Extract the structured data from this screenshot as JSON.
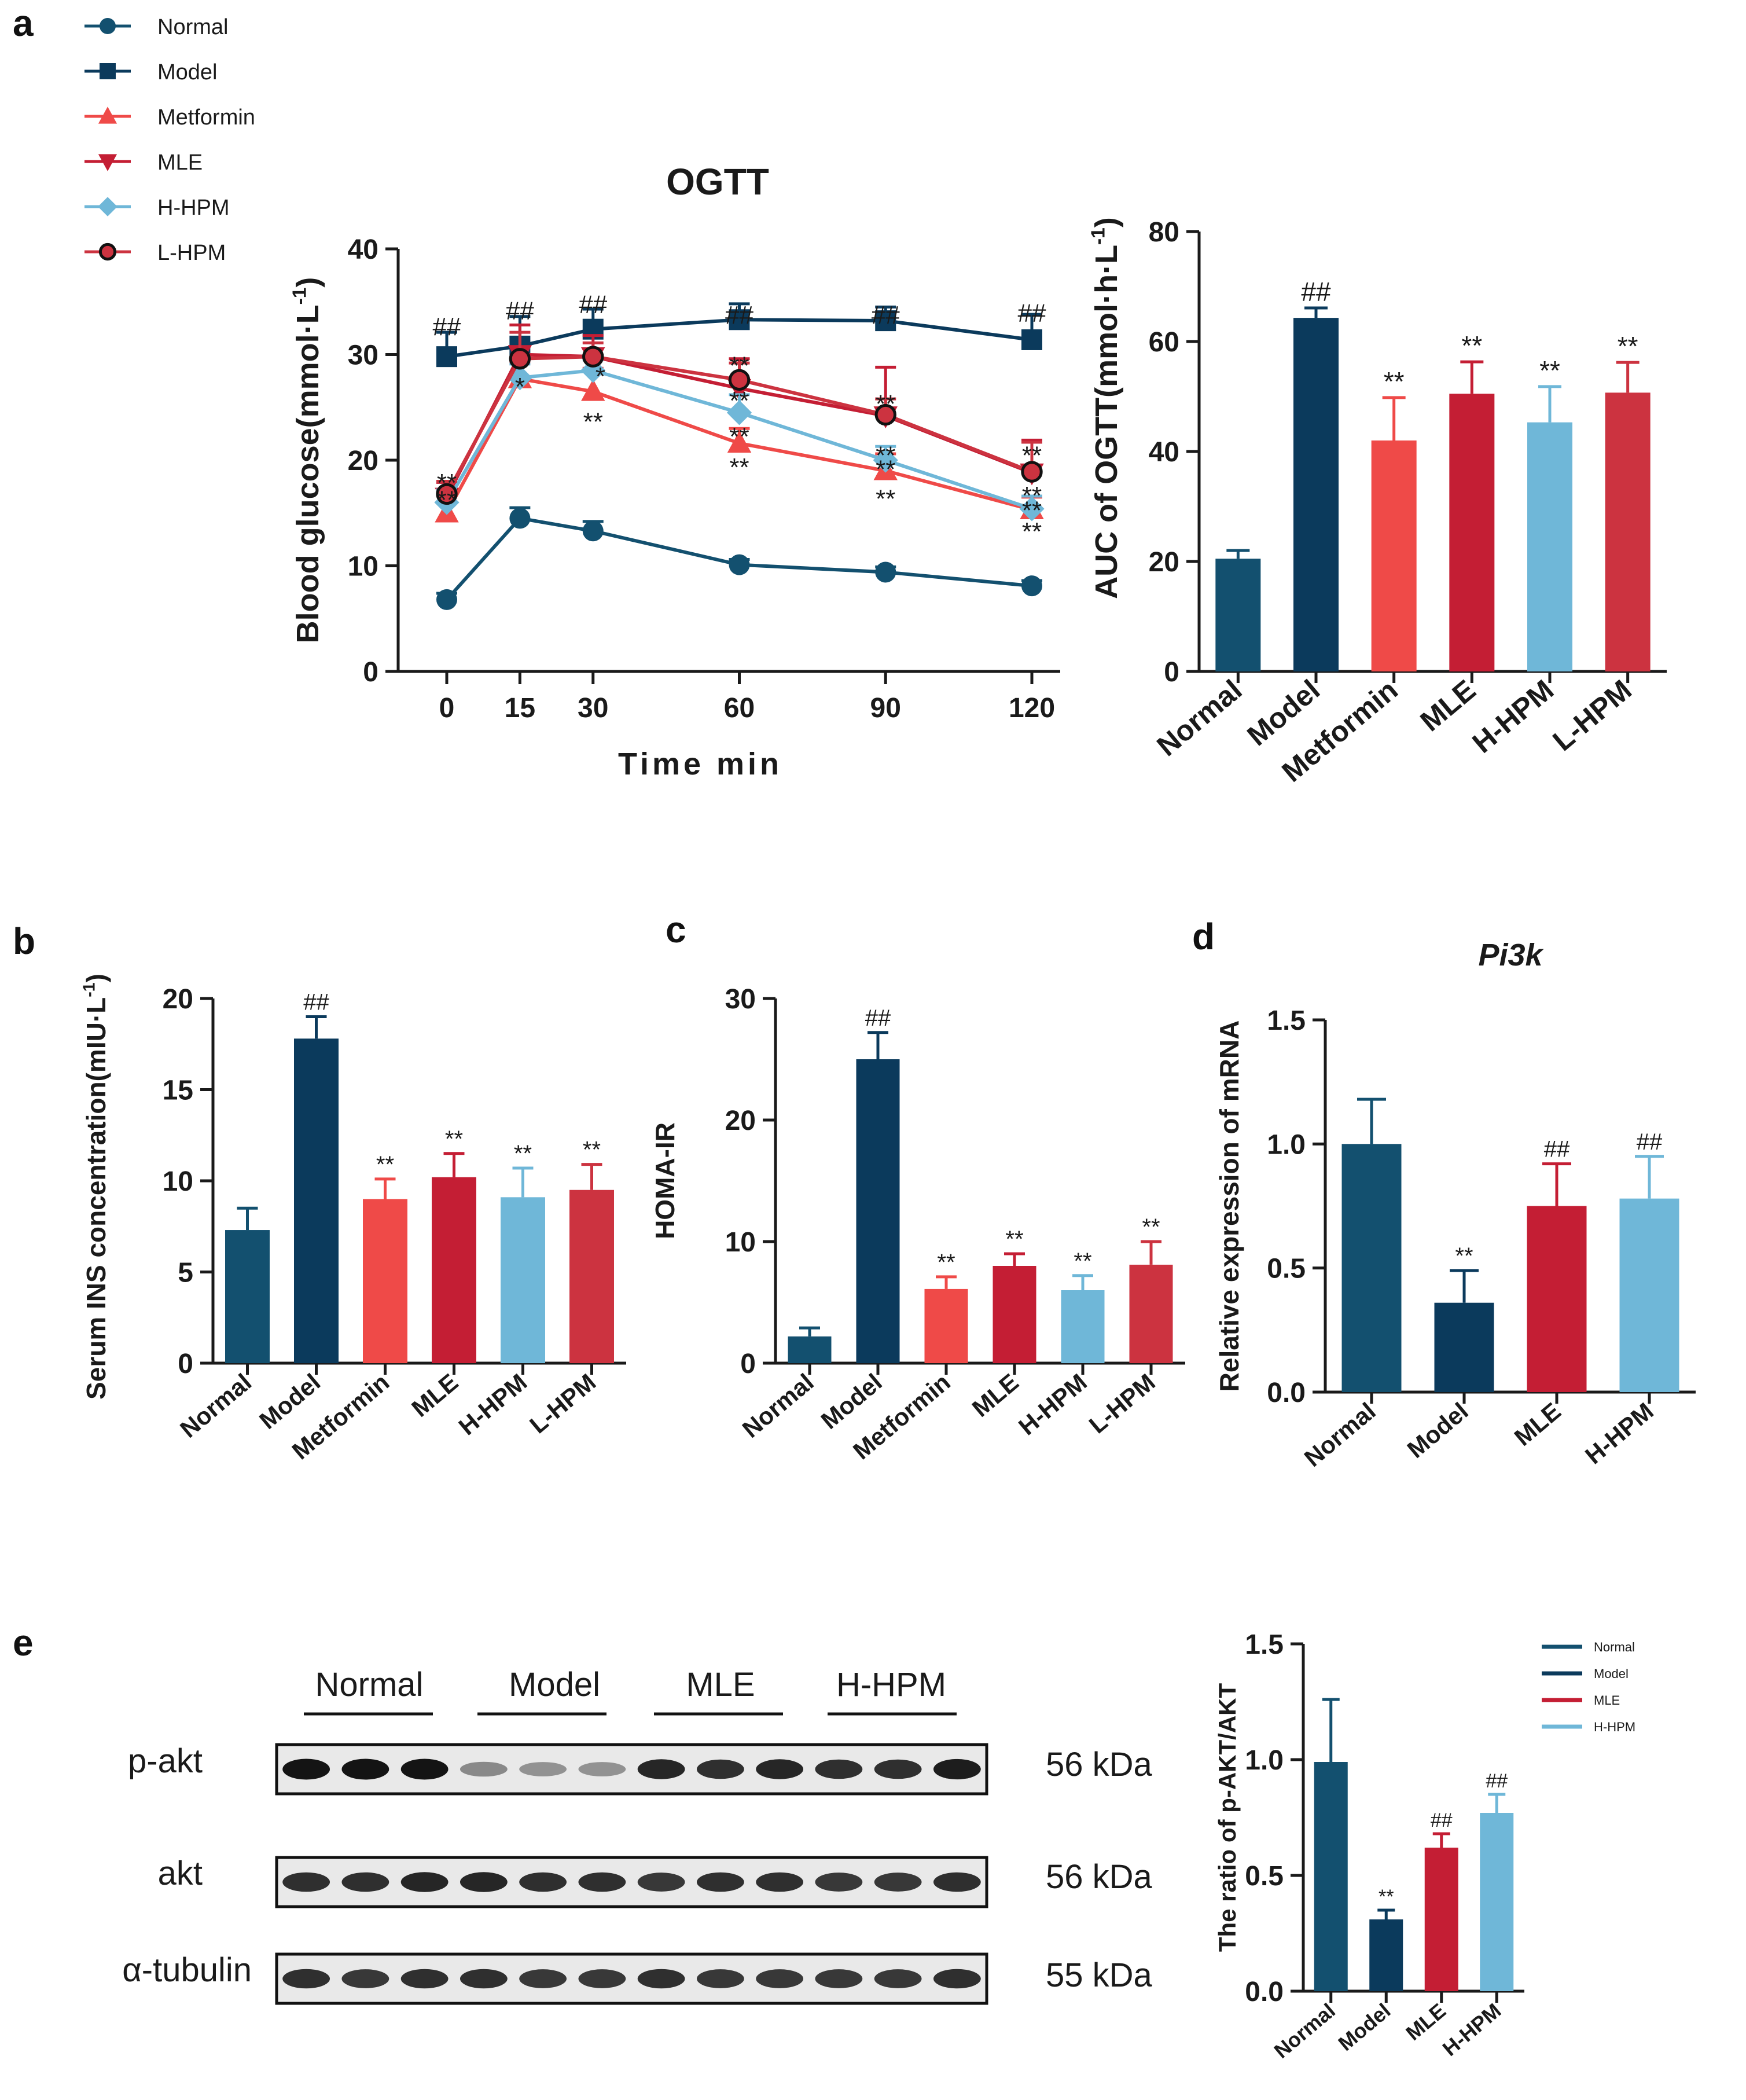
{
  "panel_labels": {
    "a": "a",
    "b": "b",
    "c": "c",
    "d": "d",
    "e": "e"
  },
  "colors": {
    "Normal": "#13506f",
    "Model": "#0b3a5c",
    "Metformin": "#ef4a48",
    "MLE": "#c41e34",
    "H-HPM": "#6fb7d8",
    "L-HPM": "#cc3340"
  },
  "legend_a": [
    {
      "name": "Normal",
      "marker": "circle"
    },
    {
      "name": "Model",
      "marker": "square"
    },
    {
      "name": "Metformin",
      "marker": "triangle-up"
    },
    {
      "name": "MLE",
      "marker": "triangle-down"
    },
    {
      "name": "H-HPM",
      "marker": "diamond"
    },
    {
      "name": "L-HPM",
      "marker": "circle-outlined"
    }
  ],
  "chart_data": [
    {
      "id": "ogtt",
      "type": "line",
      "title": "OGTT",
      "xlabel": "Time   min",
      "ylabel": "Blood glucose(mmol·L",
      "ylabel_sup": "-1",
      "ylabel_end": ")",
      "x": [
        0,
        15,
        30,
        60,
        90,
        120
      ],
      "xticks": [
        "0",
        "15",
        "30",
        "60",
        "90",
        "120"
      ],
      "ylim": [
        0,
        40
      ],
      "yticks": [
        "0",
        "10",
        "20",
        "30",
        "40"
      ],
      "series": [
        {
          "name": "Normal",
          "values": [
            6.8,
            14.5,
            13.3,
            10.1,
            9.4,
            8.1
          ],
          "err": [
            0.6,
            1.0,
            0.9,
            0.5,
            0.5,
            0.5
          ]
        },
        {
          "name": "Model",
          "values": [
            29.8,
            30.8,
            32.4,
            33.3,
            33.2,
            31.4
          ],
          "err": [
            2.3,
            2.8,
            1.9,
            1.5,
            1.3,
            2.4
          ]
        },
        {
          "name": "Metformin",
          "values": [
            15.0,
            27.7,
            26.5,
            21.6,
            19.0,
            15.3
          ],
          "err": [
            1.0,
            1.6,
            2.2,
            1.4,
            1.6,
            1.2
          ]
        },
        {
          "name": "MLE",
          "values": [
            16.5,
            30.0,
            29.8,
            26.8,
            24.2,
            18.8
          ],
          "err": [
            1.4,
            2.8,
            2.0,
            2.8,
            4.6,
            3.1
          ]
        },
        {
          "name": "H-HPM",
          "values": [
            16.0,
            27.8,
            28.5,
            24.5,
            20.0,
            15.4
          ],
          "err": [
            1.2,
            1.3,
            1.0,
            1.7,
            1.3,
            1.2
          ]
        },
        {
          "name": "L-HPM",
          "values": [
            16.8,
            29.6,
            29.8,
            27.6,
            24.3,
            18.9
          ],
          "err": [
            1.2,
            2.5,
            1.3,
            1.6,
            1.5,
            2.8
          ]
        }
      ],
      "sig_labels": [
        {
          "text": "##",
          "x": 0,
          "y": 32.6
        },
        {
          "text": "##",
          "x": 15,
          "y": 34.1
        },
        {
          "text": "##",
          "x": 30,
          "y": 34.7
        },
        {
          "text": "##",
          "x": 60,
          "y": 33.7
        },
        {
          "text": "##",
          "x": 90,
          "y": 33.7
        },
        {
          "text": "##",
          "x": 120,
          "y": 33.9
        },
        {
          "text": "**",
          "x": 0,
          "y": 17.8
        },
        {
          "text": "**",
          "x": 0,
          "y": 16.2
        },
        {
          "text": "*",
          "x": 15,
          "y": 26.9
        },
        {
          "text": "*",
          "x": 31.5,
          "y": 27.9
        },
        {
          "text": "**",
          "x": 30,
          "y": 23.6
        },
        {
          "text": "**",
          "x": 60,
          "y": 28.9
        },
        {
          "text": "**",
          "x": 60,
          "y": 25.6
        },
        {
          "text": "**",
          "x": 60,
          "y": 22.2
        },
        {
          "text": "**",
          "x": 60,
          "y": 19.3
        },
        {
          "text": "**",
          "x": 90,
          "y": 25.3
        },
        {
          "text": "**",
          "x": 90,
          "y": 20.4
        },
        {
          "text": "**",
          "x": 90,
          "y": 19.1
        },
        {
          "text": "**",
          "x": 90,
          "y": 16.3
        },
        {
          "text": "**",
          "x": 120,
          "y": 20.4
        },
        {
          "text": "**",
          "x": 120,
          "y": 16.6
        },
        {
          "text": "**",
          "x": 120,
          "y": 15.2
        },
        {
          "text": "**",
          "x": 120,
          "y": 13.2
        }
      ]
    },
    {
      "id": "auc",
      "type": "bar",
      "title": "",
      "ylabel": "AUC of OGTT(mmol·h·L",
      "ylabel_sup": "-1",
      "ylabel_end": ")",
      "categories": [
        "Normal",
        "Model",
        "Metformin",
        "MLE",
        "H-HPM",
        "L-HPM"
      ],
      "values": [
        20.5,
        64.3,
        42.0,
        50.5,
        45.3,
        50.7
      ],
      "err": [
        1.5,
        1.8,
        7.8,
        5.8,
        6.5,
        5.5
      ],
      "sig": [
        "",
        "##",
        "**",
        "**",
        "**",
        "**"
      ],
      "ylim": [
        0,
        80
      ],
      "yticks": [
        "0",
        "20",
        "40",
        "60",
        "80"
      ]
    },
    {
      "id": "ins",
      "type": "bar",
      "ylabel": "Serum INS concentration(mIU·L",
      "ylabel_sup": "-1",
      "ylabel_end": ")",
      "categories": [
        "Normal",
        "Model",
        "Metformin",
        "MLE",
        "H-HPM",
        "L-HPM"
      ],
      "values": [
        7.3,
        17.8,
        9.0,
        10.2,
        9.1,
        9.5
      ],
      "err": [
        1.2,
        1.2,
        1.1,
        1.3,
        1.6,
        1.4
      ],
      "sig": [
        "",
        "##",
        "**",
        "**",
        "**",
        "**"
      ],
      "ylim": [
        0,
        20
      ],
      "yticks": [
        "0",
        "5",
        "10",
        "15",
        "20"
      ]
    },
    {
      "id": "homa",
      "type": "bar",
      "ylabel": "HOMA-IR",
      "categories": [
        "Normal",
        "Model",
        "Metformin",
        "MLE",
        "H-HPM",
        "L-HPM"
      ],
      "values": [
        2.2,
        25.0,
        6.1,
        8.0,
        6.0,
        8.1
      ],
      "err": [
        0.7,
        2.2,
        1.0,
        1.0,
        1.2,
        1.9
      ],
      "sig": [
        "",
        "##",
        "**",
        "**",
        "**",
        "**"
      ],
      "ylim": [
        0,
        30
      ],
      "yticks": [
        "0",
        "10",
        "20",
        "30"
      ]
    },
    {
      "id": "pi3k",
      "type": "bar",
      "title": "Pi3k",
      "ylabel": "Relative expression of mRNA",
      "categories": [
        "Normal",
        "Model",
        "MLE",
        "H-HPM"
      ],
      "values": [
        1.0,
        0.36,
        0.75,
        0.78
      ],
      "err": [
        0.18,
        0.13,
        0.17,
        0.17
      ],
      "sig": [
        "",
        "**",
        "##",
        "##"
      ],
      "ylim": [
        0,
        1.5
      ],
      "yticks": [
        "0.0",
        "0.5",
        "1.0",
        "1.5"
      ]
    },
    {
      "id": "pakt",
      "type": "bar",
      "ylabel": "The ratio of p-AKT/AKT",
      "categories": [
        "Normal",
        "Model",
        "MLE",
        "H-HPM"
      ],
      "values": [
        0.99,
        0.31,
        0.62,
        0.77
      ],
      "err": [
        0.27,
        0.04,
        0.06,
        0.08
      ],
      "sig": [
        "",
        "**",
        "##",
        "##"
      ],
      "ylim": [
        0,
        1.5
      ],
      "yticks": [
        "0.0",
        "0.5",
        "1.0",
        "1.5"
      ],
      "legend": [
        "Normal",
        "Model",
        "MLE",
        "H-HPM"
      ]
    }
  ],
  "western_blot": {
    "groups": [
      "Normal",
      "Model",
      "MLE",
      "H-HPM"
    ],
    "rows": [
      {
        "label": "p-akt",
        "size": "56 kDa",
        "intensity": [
          1,
          1,
          1,
          0.35,
          0.3,
          0.3,
          0.9,
          0.85,
          0.9,
          0.85,
          0.85,
          0.95
        ]
      },
      {
        "label": "akt",
        "size": "56 kDa",
        "intensity": [
          0.85,
          0.85,
          0.9,
          0.9,
          0.85,
          0.85,
          0.8,
          0.85,
          0.85,
          0.8,
          0.8,
          0.85
        ]
      },
      {
        "label": "α-tubulin",
        "size": "55 kDa",
        "intensity": [
          0.85,
          0.8,
          0.85,
          0.85,
          0.8,
          0.8,
          0.85,
          0.8,
          0.8,
          0.8,
          0.8,
          0.85
        ]
      }
    ]
  }
}
